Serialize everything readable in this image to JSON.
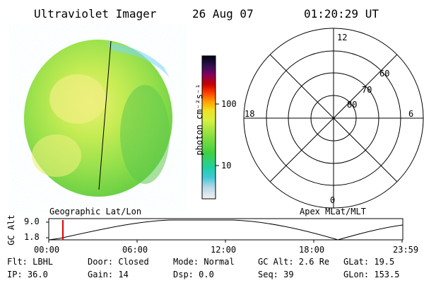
{
  "header": {
    "title": "Ultraviolet Imager",
    "date": "26 Aug 07",
    "time": "01:20:29  UT"
  },
  "colorbar": {
    "unit_label": "photon cm⁻²s⁻¹",
    "tick_100": "100",
    "tick_10": "10",
    "stops": [
      "#f2f2f2",
      "#b8d8e8",
      "#40c8d8",
      "#20d0a0",
      "#40d040",
      "#90e040",
      "#d8f040",
      "#f0e020",
      "#ffa000",
      "#ff4000",
      "#c80000",
      "#800060",
      "#301050",
      "#000010"
    ]
  },
  "image_panel": {
    "label": "Geographic Lat/Lon"
  },
  "polar_plot": {
    "label": "Apex  MLat/MLT",
    "mlt_top": "12",
    "mlt_left": "18",
    "mlt_right": "6",
    "mlt_bottom": "0",
    "lat_60": "60",
    "lat_70": "70",
    "lat_80": "80"
  },
  "altitude_plot": {
    "ylabel": "GC Alt",
    "ytick_high": "9.0",
    "ytick_low": "1.8",
    "xticks": [
      "00:00",
      "06:00",
      "12:00",
      "18:00",
      "23:59"
    ]
  },
  "info": {
    "flt": "Flt: LBHL",
    "ip": "IP: 36.0",
    "door": "Door: Closed",
    "gain": "Gain: 14",
    "mode": "Mode: Normal",
    "dsp": "Dsp:    0.0",
    "gcalt": "GC Alt: 2.6 Re",
    "seq": "Seq: 39",
    "glat": "GLat:  19.5",
    "glon": "GLon: 153.5"
  }
}
